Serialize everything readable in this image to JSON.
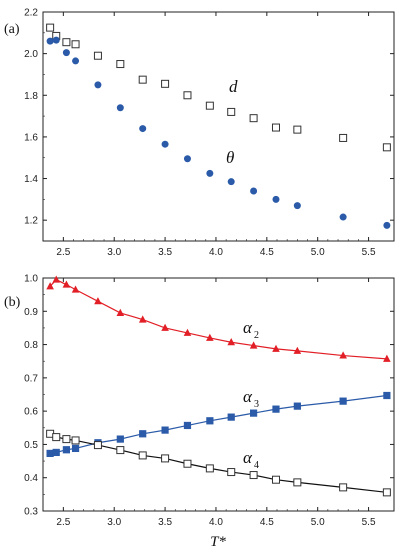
{
  "chart_data": [
    {
      "type": "scatter",
      "panel_label": "(a)",
      "xlabel": "",
      "ylabel": "",
      "xlim": [
        2.3,
        5.75
      ],
      "ylim": [
        1.1,
        2.2
      ],
      "xticks": [
        "2.5",
        "3.0",
        "3.5",
        "4.0",
        "4.5",
        "5.0",
        "5.5"
      ],
      "yticks": [
        "1.2",
        "1.4",
        "1.6",
        "1.8",
        "2.0",
        "2.2"
      ],
      "grid": false,
      "series": [
        {
          "name": "d",
          "marker": "open-square",
          "color": "#333333",
          "x": [
            2.37,
            2.43,
            2.53,
            2.62,
            2.84,
            3.06,
            3.28,
            3.5,
            3.72,
            3.94,
            4.15,
            4.37,
            4.59,
            4.8,
            5.25,
            5.68
          ],
          "y": [
            2.125,
            2.085,
            2.055,
            2.045,
            1.99,
            1.95,
            1.875,
            1.855,
            1.8,
            1.75,
            1.72,
            1.69,
            1.645,
            1.635,
            1.595,
            1.55
          ]
        },
        {
          "name": "θ",
          "marker": "filled-circle",
          "color": "#2a5aa8",
          "x": [
            2.37,
            2.43,
            2.53,
            2.62,
            2.84,
            3.06,
            3.28,
            3.5,
            3.72,
            3.94,
            4.15,
            4.37,
            4.59,
            4.8,
            5.25,
            5.68
          ],
          "y": [
            2.06,
            2.065,
            2.005,
            1.965,
            1.85,
            1.74,
            1.64,
            1.565,
            1.495,
            1.425,
            1.385,
            1.34,
            1.3,
            1.27,
            1.215,
            1.175
          ]
        }
      ]
    },
    {
      "type": "line",
      "panel_label": "(b)",
      "xlabel": "T*",
      "ylabel": "",
      "xlim": [
        2.3,
        5.75
      ],
      "ylim": [
        0.3,
        1.0
      ],
      "xticks": [
        "2.5",
        "3.0",
        "3.5",
        "4.0",
        "4.5",
        "5.0",
        "5.5"
      ],
      "yticks": [
        "0.3",
        "0.4",
        "0.5",
        "0.6",
        "0.7",
        "0.8",
        "0.9",
        "1.0"
      ],
      "grid": false,
      "series": [
        {
          "name": "α",
          "subscript": "2",
          "marker": "filled-triangle",
          "color": "#e21f26",
          "line_color": "#e21f26",
          "x": [
            2.37,
            2.43,
            2.53,
            2.62,
            2.84,
            3.06,
            3.28,
            3.5,
            3.72,
            3.94,
            4.15,
            4.37,
            4.59,
            4.8,
            5.25,
            5.68
          ],
          "y": [
            0.975,
            0.995,
            0.98,
            0.965,
            0.93,
            0.895,
            0.875,
            0.85,
            0.835,
            0.82,
            0.807,
            0.797,
            0.787,
            0.781,
            0.767,
            0.757
          ]
        },
        {
          "name": "α",
          "subscript": "3",
          "marker": "filled-square",
          "color": "#2a5aa8",
          "line_color": "#2a5aa8",
          "x": [
            2.37,
            2.43,
            2.53,
            2.62,
            2.84,
            3.06,
            3.28,
            3.5,
            3.72,
            3.94,
            4.15,
            4.37,
            4.59,
            4.8,
            5.25,
            5.68
          ],
          "y": [
            0.473,
            0.476,
            0.484,
            0.488,
            0.505,
            0.516,
            0.532,
            0.543,
            0.557,
            0.571,
            0.582,
            0.594,
            0.606,
            0.615,
            0.63,
            0.647
          ]
        },
        {
          "name": "α",
          "subscript": "4",
          "marker": "open-square",
          "color": "#333333",
          "line_color": "#111111",
          "x": [
            2.37,
            2.43,
            2.53,
            2.62,
            2.84,
            3.06,
            3.28,
            3.5,
            3.72,
            3.94,
            4.15,
            4.37,
            4.59,
            4.8,
            5.25,
            5.68
          ],
          "y": [
            0.532,
            0.522,
            0.516,
            0.512,
            0.498,
            0.483,
            0.467,
            0.458,
            0.442,
            0.428,
            0.417,
            0.408,
            0.394,
            0.386,
            0.371,
            0.356
          ]
        }
      ]
    }
  ]
}
